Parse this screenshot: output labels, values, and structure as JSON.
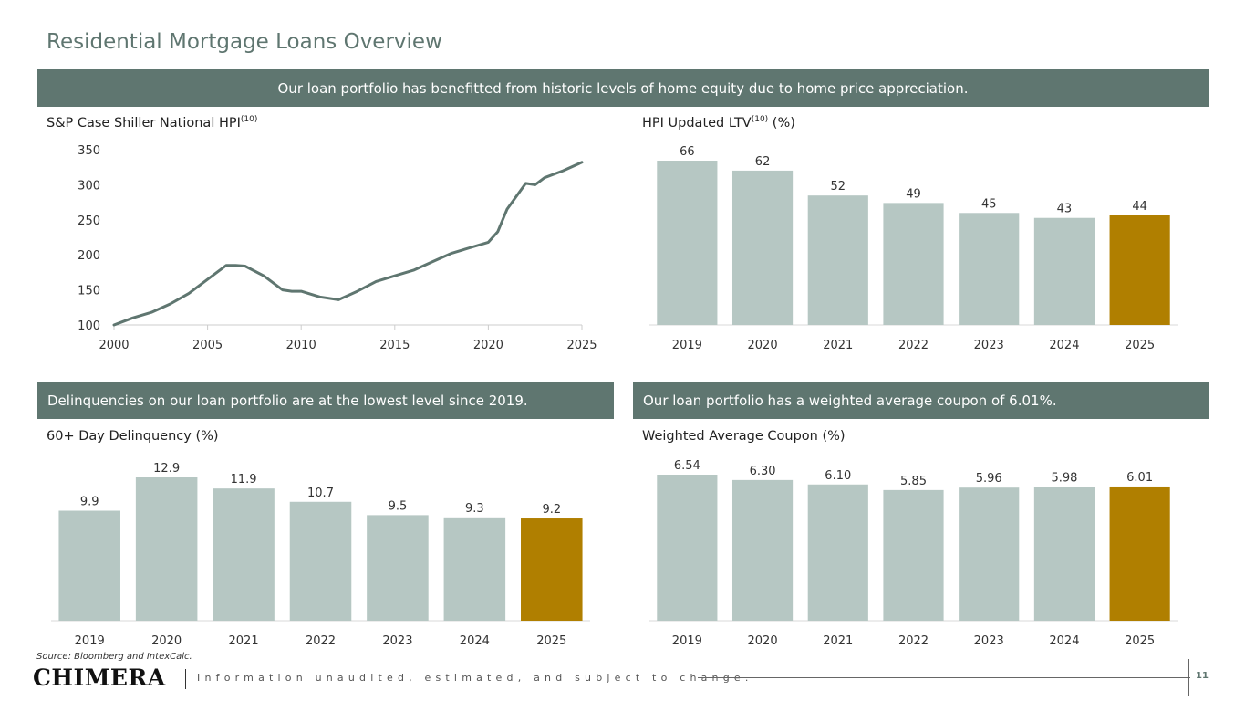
{
  "page_title": "Residential Mortgage Loans Overview",
  "banners": {
    "top": "Our loan portfolio has benefitted from historic levels of home equity due to home price appreciation.",
    "delinquency": "Delinquencies on our loan portfolio are at the lowest level since 2019.",
    "coupon": "Our loan portfolio has a weighted average coupon of 6.01%."
  },
  "chart_titles": {
    "hpi_main": "S&P Case Shiller National HPI",
    "hpi_sup": "(10)",
    "ltv_main": "HPI Updated LTV",
    "ltv_sup": "(10)",
    "ltv_suffix": " (%)",
    "delinquency": "60+ Day Delinquency (%)",
    "coupon": "Weighted Average Coupon (%)"
  },
  "colors": {
    "bar": "#b6c7c3",
    "highlight": "#b07f00",
    "line": "#5f7670",
    "banner": "#5f7670"
  },
  "chart_data": [
    {
      "type": "line",
      "title": "S&P Case Shiller National HPI",
      "x": [
        2000,
        2001,
        2002,
        2003,
        2004,
        2005,
        2006,
        2006.5,
        2007,
        2008,
        2009,
        2009.5,
        2010,
        2011,
        2012,
        2013,
        2014,
        2015,
        2016,
        2017,
        2018,
        2019,
        2020,
        2020.5,
        2021,
        2022,
        2022.5,
        2023,
        2024,
        2025
      ],
      "values": [
        100,
        110,
        118,
        130,
        145,
        165,
        185,
        185,
        184,
        170,
        150,
        148,
        148,
        140,
        136,
        148,
        162,
        170,
        178,
        190,
        202,
        210,
        218,
        233,
        265,
        302,
        300,
        310,
        320,
        332
      ],
      "xticks": [
        "2000",
        "2005",
        "2010",
        "2015",
        "2020",
        "2025"
      ],
      "yticks": [
        "100",
        "150",
        "200",
        "250",
        "300",
        "350"
      ],
      "xlim": [
        2000,
        2025
      ],
      "ylim": [
        100,
        350
      ]
    },
    {
      "type": "bar",
      "title": "HPI Updated LTV (%)",
      "categories": [
        "2019",
        "2020",
        "2021",
        "2022",
        "2023",
        "2024",
        "2025"
      ],
      "values": [
        66,
        62,
        52,
        49,
        45,
        43,
        44
      ],
      "labels": [
        "66",
        "62",
        "52",
        "49",
        "45",
        "43",
        "44"
      ],
      "highlight_index": 6
    },
    {
      "type": "bar",
      "title": "60+ Day Delinquency (%)",
      "categories": [
        "2019",
        "2020",
        "2021",
        "2022",
        "2023",
        "2024",
        "2025"
      ],
      "values": [
        9.9,
        12.9,
        11.9,
        10.7,
        9.5,
        9.3,
        9.2
      ],
      "labels": [
        "9.9",
        "12.9",
        "11.9",
        "10.7",
        "9.5",
        "9.3",
        "9.2"
      ],
      "highlight_index": 6
    },
    {
      "type": "bar",
      "title": "Weighted Average Coupon (%)",
      "categories": [
        "2019",
        "2020",
        "2021",
        "2022",
        "2023",
        "2024",
        "2025"
      ],
      "values": [
        6.54,
        6.3,
        6.1,
        5.85,
        5.96,
        5.98,
        6.01
      ],
      "labels": [
        "6.54",
        "6.30",
        "6.10",
        "5.85",
        "5.96",
        "5.98",
        "6.01"
      ],
      "highlight_index": 6
    }
  ],
  "footer": {
    "source": "Source: Bloomberg and IntexCalc.",
    "logo": "CHIMERA",
    "disclaimer": "Information unaudited, estimated, and subject to change.",
    "page_number": "11"
  }
}
